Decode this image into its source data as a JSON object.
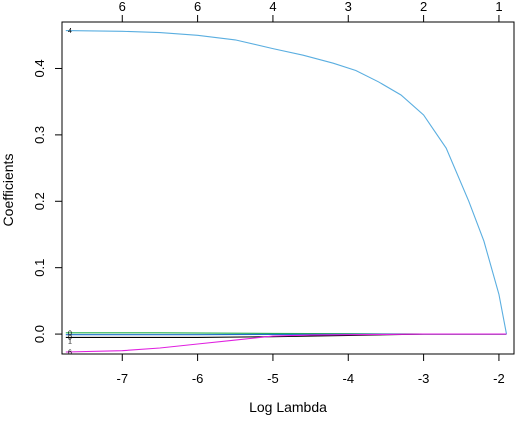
{
  "chart_data": {
    "type": "line",
    "title": "",
    "xlabel": "Log Lambda",
    "ylabel": "Coefficients",
    "xlim": [
      -7.8,
      -1.8
    ],
    "ylim": [
      -0.03,
      0.47
    ],
    "x_ticks": [
      -7,
      -6,
      -5,
      -4,
      -3,
      -2
    ],
    "x_tick_labels": [
      "-7",
      "-6",
      "-5",
      "-4",
      "-3",
      "-2"
    ],
    "y_ticks": [
      0.0,
      0.1,
      0.2,
      0.3,
      0.4
    ],
    "y_tick_labels": [
      "0.0",
      "0.1",
      "0.2",
      "0.3",
      "0.4"
    ],
    "top_axis": {
      "positions": [
        -7.0,
        -6.0,
        -5.0,
        -4.0,
        -3.0,
        -2.0
      ],
      "labels": [
        "6",
        "6",
        "4",
        "3",
        "2",
        "1"
      ]
    },
    "grid": false,
    "series": [
      {
        "color": "#5aaee0",
        "label": "4",
        "x": [
          -7.75,
          -7.0,
          -6.5,
          -6.0,
          -5.5,
          -5.0,
          -4.6,
          -4.2,
          -3.9,
          -3.6,
          -3.3,
          -3.0,
          -2.7,
          -2.4,
          -2.2,
          -2.0,
          -1.9
        ],
        "y": [
          0.457,
          0.456,
          0.454,
          0.45,
          0.443,
          0.43,
          0.42,
          0.408,
          0.397,
          0.38,
          0.36,
          0.33,
          0.28,
          0.2,
          0.14,
          0.06,
          0.0
        ]
      },
      {
        "color": "#22b14c",
        "label": "0",
        "x": [
          -7.75,
          -6.5,
          -5.0,
          -4.0,
          -3.0,
          -1.9
        ],
        "y": [
          0.002,
          0.002,
          0.001,
          0.0005,
          0.0,
          0.0
        ]
      },
      {
        "color": "#1f6fc9",
        "label": "0",
        "x": [
          -7.75,
          -6.0,
          -5.0,
          -4.0,
          -3.0,
          -1.9
        ],
        "y": [
          -0.001,
          -0.001,
          -0.0005,
          -0.0003,
          0.0,
          0.0
        ]
      },
      {
        "color": "#000000",
        "label": "1",
        "x": [
          -7.75,
          -6.0,
          -5.0,
          -4.0,
          -3.0,
          -1.9
        ],
        "y": [
          -0.005,
          -0.005,
          -0.004,
          -0.002,
          0.0,
          0.0
        ]
      },
      {
        "color": "#e020e0",
        "label": "6",
        "x": [
          -7.75,
          -7.0,
          -6.5,
          -6.0,
          -5.5,
          -5.0,
          -4.5,
          -4.0,
          -3.5,
          -3.0,
          -1.9
        ],
        "y": [
          -0.027,
          -0.025,
          -0.021,
          -0.015,
          -0.009,
          -0.003,
          -0.0015,
          -0.001,
          -0.0005,
          0.0,
          0.0
        ]
      }
    ]
  }
}
